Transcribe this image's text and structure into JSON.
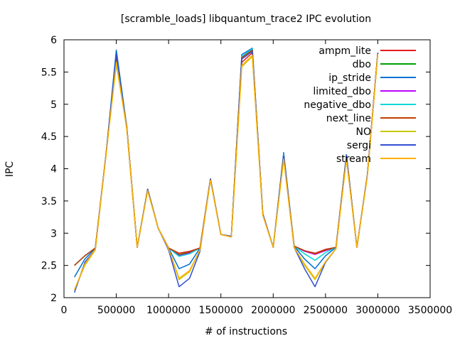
{
  "chart_data": {
    "type": "line",
    "title": "[scramble_loads] libquantum_trace2 IPC evolution",
    "xlabel": "# of instructions",
    "ylabel": "IPC",
    "xlim": [
      0,
      3500000
    ],
    "ylim": [
      2,
      6
    ],
    "xticks": [
      0,
      500000,
      1000000,
      1500000,
      2000000,
      2500000,
      3000000,
      3500000
    ],
    "yticks": [
      2,
      2.5,
      3,
      3.5,
      4,
      4.5,
      5,
      5.5,
      6
    ],
    "grid": false,
    "legend_position": "top-right",
    "x": [
      100000,
      200000,
      300000,
      400000,
      500000,
      600000,
      700000,
      800000,
      900000,
      1000000,
      1100000,
      1200000,
      1300000,
      1400000,
      1500000,
      1600000,
      1700000,
      1800000,
      1900000,
      2000000,
      2100000,
      2200000,
      2300000,
      2400000,
      2500000,
      2600000,
      2700000,
      2800000,
      2900000,
      3000000
    ],
    "series": [
      {
        "name": "ampm_lite",
        "color": "#e41a1c",
        "values": [
          2.5,
          2.65,
          2.77,
          4.2,
          5.68,
          4.65,
          2.78,
          3.68,
          3.08,
          2.77,
          2.69,
          2.72,
          2.77,
          3.84,
          2.98,
          2.95,
          5.65,
          5.8,
          3.3,
          2.78,
          4.2,
          2.8,
          2.73,
          2.69,
          2.75,
          2.78,
          4.2,
          2.78,
          3.9,
          5.8
        ]
      },
      {
        "name": "dbo",
        "color": "#00a000",
        "values": [
          2.5,
          2.65,
          2.77,
          4.2,
          5.7,
          4.65,
          2.78,
          3.68,
          3.08,
          2.77,
          2.66,
          2.7,
          2.77,
          3.84,
          2.98,
          2.95,
          5.72,
          5.84,
          3.3,
          2.78,
          4.22,
          2.8,
          2.72,
          2.68,
          2.74,
          2.78,
          4.2,
          2.78,
          3.9,
          5.8
        ]
      },
      {
        "name": "ip_stride",
        "color": "#0070d0",
        "values": [
          2.32,
          2.6,
          2.77,
          4.2,
          5.84,
          4.65,
          2.78,
          3.68,
          3.08,
          2.77,
          2.45,
          2.52,
          2.77,
          3.84,
          2.98,
          2.95,
          5.77,
          5.87,
          3.3,
          2.78,
          4.25,
          2.8,
          2.6,
          2.45,
          2.65,
          2.78,
          4.22,
          2.78,
          3.9,
          5.8
        ]
      },
      {
        "name": "limited_dbo",
        "color": "#c000ff",
        "values": [
          2.5,
          2.65,
          2.77,
          4.2,
          5.7,
          4.65,
          2.78,
          3.68,
          3.08,
          2.77,
          2.65,
          2.69,
          2.77,
          3.84,
          2.98,
          2.95,
          5.74,
          5.85,
          3.3,
          2.78,
          4.22,
          2.8,
          2.72,
          2.67,
          2.73,
          2.78,
          4.2,
          2.78,
          3.9,
          5.8
        ]
      },
      {
        "name": "negative_dbo",
        "color": "#00d8d8",
        "values": [
          2.5,
          2.65,
          2.77,
          4.2,
          5.72,
          4.65,
          2.78,
          3.68,
          3.08,
          2.77,
          2.64,
          2.68,
          2.77,
          3.84,
          2.98,
          2.95,
          5.74,
          5.86,
          3.3,
          2.78,
          4.22,
          2.8,
          2.68,
          2.58,
          2.7,
          2.78,
          4.2,
          2.78,
          3.9,
          5.8
        ]
      },
      {
        "name": "next_line",
        "color": "#c04000",
        "values": [
          2.5,
          2.65,
          2.77,
          4.2,
          5.7,
          4.65,
          2.78,
          3.68,
          3.08,
          2.77,
          2.68,
          2.71,
          2.77,
          3.84,
          2.98,
          2.95,
          5.72,
          5.84,
          3.3,
          2.78,
          4.2,
          2.8,
          2.73,
          2.68,
          2.74,
          2.78,
          4.2,
          2.78,
          3.9,
          5.8
        ]
      },
      {
        "name": "NO",
        "color": "#c8c800",
        "values": [
          2.12,
          2.5,
          2.74,
          4.2,
          5.62,
          4.62,
          2.78,
          3.66,
          3.08,
          2.76,
          2.28,
          2.4,
          2.74,
          3.82,
          2.98,
          2.94,
          5.58,
          5.74,
          3.28,
          2.78,
          4.15,
          2.78,
          2.5,
          2.28,
          2.55,
          2.76,
          4.15,
          2.78,
          3.88,
          5.78
        ]
      },
      {
        "name": "sergi",
        "color": "#3050d0",
        "values": [
          2.08,
          2.55,
          2.75,
          4.2,
          5.78,
          4.62,
          2.78,
          3.68,
          3.08,
          2.74,
          2.17,
          2.3,
          2.72,
          3.84,
          2.98,
          2.95,
          5.7,
          5.82,
          3.3,
          2.78,
          4.2,
          2.78,
          2.45,
          2.17,
          2.55,
          2.76,
          4.2,
          2.78,
          3.9,
          5.8
        ]
      },
      {
        "name": "stream",
        "color": "#ffb000",
        "values": [
          2.12,
          2.52,
          2.75,
          4.18,
          5.65,
          4.62,
          2.78,
          3.66,
          3.08,
          2.76,
          2.3,
          2.42,
          2.74,
          3.82,
          2.98,
          2.94,
          5.6,
          5.76,
          3.28,
          2.78,
          4.15,
          2.78,
          2.52,
          2.3,
          2.56,
          2.76,
          4.15,
          2.78,
          3.88,
          5.78
        ]
      }
    ]
  }
}
